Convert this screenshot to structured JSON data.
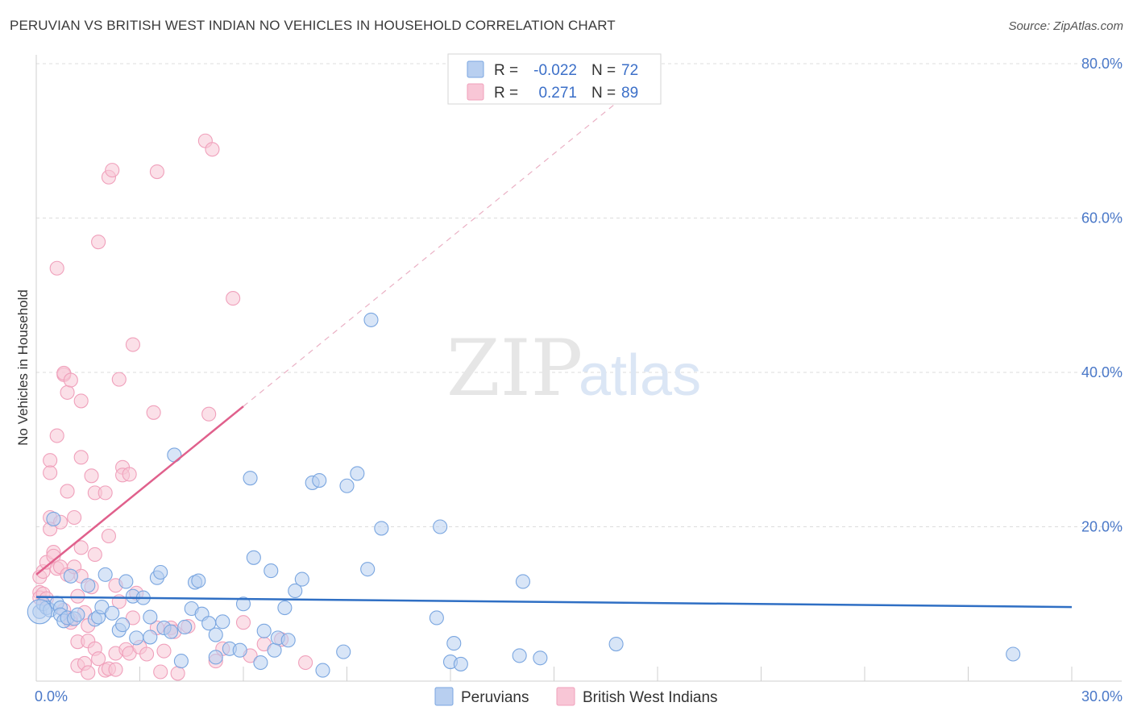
{
  "title": "PERUVIAN VS BRITISH WEST INDIAN NO VEHICLES IN HOUSEHOLD CORRELATION CHART",
  "source": "Source: ZipAtlas.com",
  "watermark": {
    "zip": "ZIP",
    "atlas": "atlas"
  },
  "chart_data": {
    "type": "scatter",
    "title": "PERUVIAN VS BRITISH WEST INDIAN NO VEHICLES IN HOUSEHOLD CORRELATION CHART",
    "xlabel": "",
    "ylabel": "No Vehicles in Household",
    "xlim": [
      0,
      30
    ],
    "ylim": [
      0,
      80
    ],
    "x_tick_labels": [
      "0.0%",
      "30.0%"
    ],
    "y_tick_labels": [
      {
        "value": 20,
        "label": "20.0%"
      },
      {
        "value": 40,
        "label": "40.0%"
      },
      {
        "value": 60,
        "label": "60.0%"
      },
      {
        "value": 80,
        "label": "80.0%"
      }
    ],
    "grid": true,
    "legend_placement": "top-center",
    "series": [
      {
        "name": "Peruvians",
        "color": "#7aa6e0",
        "fill": "#b8cff0",
        "line_color": "#2f6fc4",
        "R": "-0.022",
        "N": "72",
        "trend": {
          "x": [
            0,
            30
          ],
          "y": [
            10.9,
            9.6
          ]
        },
        "points": [
          [
            0.1,
            9.0
          ],
          [
            0.2,
            10.0
          ],
          [
            0.3,
            9.5
          ],
          [
            0.4,
            9.2
          ],
          [
            0.5,
            21.0
          ],
          [
            0.6,
            10.1
          ],
          [
            0.7,
            9.5
          ],
          [
            0.7,
            8.6
          ],
          [
            0.8,
            7.8
          ],
          [
            0.9,
            8.2
          ],
          [
            1.0,
            13.6
          ],
          [
            1.1,
            8.1
          ],
          [
            1.2,
            8.6
          ],
          [
            1.5,
            12.4
          ],
          [
            1.7,
            8.0
          ],
          [
            1.8,
            8.3
          ],
          [
            1.9,
            9.6
          ],
          [
            2.0,
            13.8
          ],
          [
            2.2,
            8.8
          ],
          [
            2.4,
            6.6
          ],
          [
            2.5,
            7.3
          ],
          [
            2.6,
            12.9
          ],
          [
            2.8,
            11.0
          ],
          [
            2.9,
            5.6
          ],
          [
            3.1,
            10.8
          ],
          [
            3.3,
            5.7
          ],
          [
            3.3,
            8.3
          ],
          [
            3.5,
            13.4
          ],
          [
            3.6,
            14.1
          ],
          [
            3.7,
            6.9
          ],
          [
            3.9,
            6.4
          ],
          [
            4.0,
            29.3
          ],
          [
            4.2,
            2.6
          ],
          [
            4.3,
            7.0
          ],
          [
            4.5,
            9.4
          ],
          [
            4.6,
            12.8
          ],
          [
            4.7,
            13.0
          ],
          [
            4.8,
            8.7
          ],
          [
            5.0,
            7.5
          ],
          [
            5.2,
            6.0
          ],
          [
            5.2,
            3.1
          ],
          [
            5.4,
            7.7
          ],
          [
            5.6,
            4.2
          ],
          [
            5.9,
            4.0
          ],
          [
            6.0,
            10.0
          ],
          [
            6.2,
            26.3
          ],
          [
            6.3,
            16.0
          ],
          [
            6.5,
            2.4
          ],
          [
            6.6,
            6.5
          ],
          [
            6.8,
            14.3
          ],
          [
            6.9,
            4.0
          ],
          [
            7.0,
            5.6
          ],
          [
            7.2,
            9.5
          ],
          [
            7.3,
            5.3
          ],
          [
            7.5,
            11.7
          ],
          [
            7.7,
            13.2
          ],
          [
            8.0,
            25.7
          ],
          [
            8.2,
            26.0
          ],
          [
            8.3,
            1.4
          ],
          [
            8.9,
            3.8
          ],
          [
            9.0,
            25.3
          ],
          [
            9.3,
            26.9
          ],
          [
            9.6,
            14.5
          ],
          [
            9.7,
            46.8
          ],
          [
            10.0,
            19.8
          ],
          [
            11.6,
            8.2
          ],
          [
            11.7,
            20.0
          ],
          [
            12.0,
            2.5
          ],
          [
            12.1,
            4.9
          ],
          [
            12.3,
            2.2
          ],
          [
            14.0,
            3.3
          ],
          [
            14.1,
            12.9
          ],
          [
            14.6,
            3.0
          ],
          [
            16.8,
            4.8
          ],
          [
            28.3,
            3.5
          ]
        ]
      },
      {
        "name": "British West Indians",
        "color": "#f0a0bb",
        "fill": "#f8c6d6",
        "line_color": "#e0608c",
        "R": "0.271",
        "N": "89",
        "trend": {
          "x": [
            0,
            6.0
          ],
          "y": [
            13.8,
            35.6
          ]
        },
        "trend_dashed": {
          "x": [
            6.0,
            16.8
          ],
          "y": [
            35.6,
            74.9
          ]
        },
        "points": [
          [
            0.1,
            13.5
          ],
          [
            0.1,
            11.5
          ],
          [
            0.1,
            10.8
          ],
          [
            0.2,
            14.2
          ],
          [
            0.2,
            11.3
          ],
          [
            0.3,
            15.4
          ],
          [
            0.3,
            10.7
          ],
          [
            0.4,
            21.2
          ],
          [
            0.4,
            19.7
          ],
          [
            0.4,
            28.6
          ],
          [
            0.4,
            27.0
          ],
          [
            0.5,
            16.7
          ],
          [
            0.5,
            16.2
          ],
          [
            0.6,
            14.6
          ],
          [
            0.6,
            53.5
          ],
          [
            0.6,
            31.8
          ],
          [
            0.7,
            20.6
          ],
          [
            0.7,
            14.8
          ],
          [
            0.8,
            39.7
          ],
          [
            0.8,
            39.9
          ],
          [
            0.8,
            9.2
          ],
          [
            0.9,
            37.4
          ],
          [
            0.9,
            13.8
          ],
          [
            0.9,
            24.6
          ],
          [
            1.0,
            39.0
          ],
          [
            1.0,
            8.0
          ],
          [
            1.0,
            7.6
          ],
          [
            1.1,
            21.2
          ],
          [
            1.1,
            14.8
          ],
          [
            1.2,
            11.0
          ],
          [
            1.2,
            5.1
          ],
          [
            1.2,
            2.0
          ],
          [
            1.3,
            36.3
          ],
          [
            1.3,
            29.0
          ],
          [
            1.3,
            17.3
          ],
          [
            1.3,
            13.6
          ],
          [
            1.4,
            8.9
          ],
          [
            1.4,
            2.3
          ],
          [
            1.5,
            7.2
          ],
          [
            1.5,
            5.2
          ],
          [
            1.5,
            1.1
          ],
          [
            1.6,
            26.6
          ],
          [
            1.6,
            12.2
          ],
          [
            1.7,
            24.4
          ],
          [
            1.7,
            16.4
          ],
          [
            1.7,
            4.2
          ],
          [
            1.8,
            56.9
          ],
          [
            1.8,
            2.9
          ],
          [
            2.0,
            24.4
          ],
          [
            2.0,
            1.4
          ],
          [
            2.1,
            65.3
          ],
          [
            2.1,
            18.8
          ],
          [
            2.1,
            1.6
          ],
          [
            2.2,
            66.2
          ],
          [
            2.3,
            1.5
          ],
          [
            2.3,
            12.4
          ],
          [
            2.3,
            3.6
          ],
          [
            2.4,
            39.1
          ],
          [
            2.4,
            10.3
          ],
          [
            2.5,
            27.7
          ],
          [
            2.5,
            26.7
          ],
          [
            2.6,
            4.1
          ],
          [
            2.7,
            26.8
          ],
          [
            2.7,
            3.6
          ],
          [
            2.8,
            43.6
          ],
          [
            2.8,
            8.2
          ],
          [
            2.9,
            11.4
          ],
          [
            3.0,
            4.4
          ],
          [
            3.2,
            3.5
          ],
          [
            3.4,
            34.8
          ],
          [
            3.5,
            66.0
          ],
          [
            3.5,
            6.9
          ],
          [
            3.6,
            1.2
          ],
          [
            3.7,
            3.9
          ],
          [
            3.9,
            6.9
          ],
          [
            4.0,
            6.4
          ],
          [
            4.1,
            1.0
          ],
          [
            4.4,
            7.1
          ],
          [
            4.9,
            70.0
          ],
          [
            5.0,
            34.6
          ],
          [
            5.1,
            68.9
          ],
          [
            5.2,
            2.6
          ],
          [
            5.4,
            4.2
          ],
          [
            5.7,
            49.6
          ],
          [
            6.0,
            7.6
          ],
          [
            6.2,
            3.3
          ],
          [
            6.6,
            4.8
          ],
          [
            7.1,
            5.4
          ],
          [
            7.8,
            2.4
          ]
        ]
      }
    ]
  },
  "legend": {
    "r_label": "R =",
    "n_label": "N =",
    "rows": [
      {
        "r": "-0.022",
        "n": "72"
      },
      {
        "r": "0.271",
        "n": "89"
      }
    ]
  },
  "bottom_legend": [
    "Peruvians",
    "British West Indians"
  ]
}
